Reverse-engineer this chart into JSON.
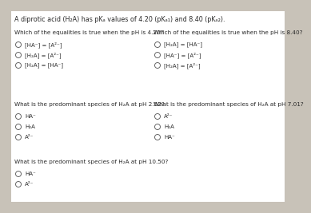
{
  "bg_color": "#c8c2b8",
  "card_color": "#ffffff",
  "text_color": "#2a2a2a",
  "title": "A diprotic acid (H₂A) has pKₐ values of 4.20 (pKₐ₁) and 8.40 (pKₐ₂).",
  "font_size_title": 5.8,
  "font_size_q": 5.2,
  "font_size_opt": 5.0,
  "questions": [
    {
      "text": "Which of the equalities is true when the pH is 4.20?",
      "options": [
        "[HA⁻] = [A²⁻]",
        "[H₂A] = [A²⁻]",
        "[H₂A] = [HA⁻]"
      ],
      "col": 0,
      "row": 0
    },
    {
      "text": "Which of the equalities is true when the pH is 8.40?",
      "options": [
        "[H₂A] = [HA⁻]",
        "[HA⁻] = [A²⁻]",
        "[H₂A] = [A²⁻]"
      ],
      "col": 1,
      "row": 0
    },
    {
      "text": "What is the predominant species of H₂A at pH 2.52?",
      "options": [
        "HA⁻",
        "H₂A",
        "A²⁻"
      ],
      "col": 0,
      "row": 1
    },
    {
      "text": "What is the predominant species of H₂A at pH 7.01?",
      "options": [
        "A²⁻",
        "H₂A",
        "HA⁻"
      ],
      "col": 1,
      "row": 1
    },
    {
      "text": "What is the predominant species of H₂A at pH 10.50?",
      "options": [
        "HA⁻",
        "A²⁻"
      ],
      "col": 0,
      "row": 2
    }
  ]
}
